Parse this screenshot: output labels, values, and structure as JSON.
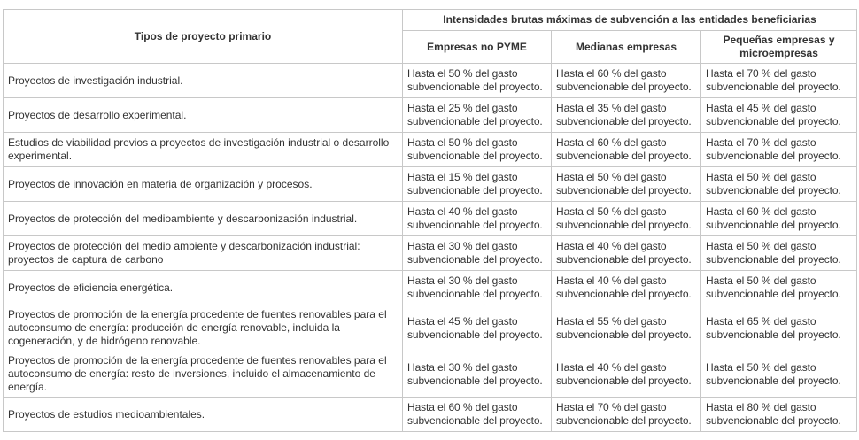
{
  "table": {
    "header": {
      "first_column": "Tipos de proyecto primario",
      "group": "Intensidades brutas máximas de subvención a las entidades beneficiarias",
      "columns": [
        "Empresas no PYME",
        "Medianas empresas",
        "Pequeñas empresas y microempresas"
      ]
    },
    "rows": [
      [
        "Proyectos de investigación industrial.",
        "Hasta el 50 % del gasto subvencionable del proyecto.",
        "Hasta el 60 % del gasto subvencionable del proyecto.",
        "Hasta el 70 % del gasto subvencionable del proyecto."
      ],
      [
        "Proyectos de desarrollo experimental.",
        "Hasta el 25 % del gasto subvencionable del proyecto.",
        "Hasta el 35 % del gasto subvencionable del proyecto.",
        "Hasta el 45 % del gasto subvencionable del proyecto."
      ],
      [
        "Estudios de viabilidad previos a proyectos de investigación industrial o desarrollo experimental.",
        "Hasta el 50 % del gasto subvencionable del proyecto.",
        "Hasta el 60 % del gasto subvencionable del proyecto.",
        "Hasta el 70 % del gasto subvencionable del proyecto."
      ],
      [
        "Proyectos de innovación en materia de organización y procesos.",
        "Hasta el 15 % del gasto subvencionable del proyecto.",
        "Hasta el 50 % del gasto subvencionable del proyecto.",
        "Hasta el 50 % del gasto subvencionable del proyecto."
      ],
      [
        "Proyectos de protección del medioambiente y descarbonización industrial.",
        "Hasta el 40 % del gasto subvencionable del proyecto.",
        "Hasta el 50 % del gasto subvencionable del proyecto.",
        "Hasta el 60 % del gasto subvencionable del proyecto."
      ],
      [
        "Proyectos de protección del medio ambiente y descarbonización industrial: proyectos de captura de carbono",
        "Hasta el 30 % del gasto subvencionable del proyecto.",
        "Hasta el 40 % del gasto subvencionable del proyecto.",
        "Hasta el 50 % del gasto subvencionable del proyecto."
      ],
      [
        "Proyectos de eficiencia energética.",
        "Hasta el 30 % del gasto subvencionable del proyecto.",
        "Hasta el 40 % del gasto subvencionable del proyecto.",
        "Hasta el 50 % del gasto subvencionable del proyecto."
      ],
      [
        "Proyectos de promoción de la energía procedente de fuentes renovables para el autoconsumo de energía: producción de energía renovable, incluida la cogeneración, y de hidrógeno renovable.",
        "Hasta el 45 % del gasto subvencionable del proyecto.",
        "Hasta el 55 % del gasto subvencionable del proyecto.",
        "Hasta el 65 % del gasto subvencionable del proyecto."
      ],
      [
        "Proyectos de promoción de la energía procedente de fuentes renovables para el autoconsumo de energía: resto de inversiones, incluido el almacenamiento de energía.",
        "Hasta el 30 % del gasto subvencionable del proyecto.",
        "Hasta el 40 % del gasto subvencionable del proyecto.",
        "Hasta el 50 % del gasto subvencionable del proyecto."
      ],
      [
        "Proyectos de estudios medioambientales.",
        "Hasta el 60 % del gasto subvencionable del proyecto.",
        "Hasta el 70 % del gasto subvencionable del proyecto.",
        "Hasta el 80 % del gasto subvencionable del proyecto."
      ]
    ]
  }
}
